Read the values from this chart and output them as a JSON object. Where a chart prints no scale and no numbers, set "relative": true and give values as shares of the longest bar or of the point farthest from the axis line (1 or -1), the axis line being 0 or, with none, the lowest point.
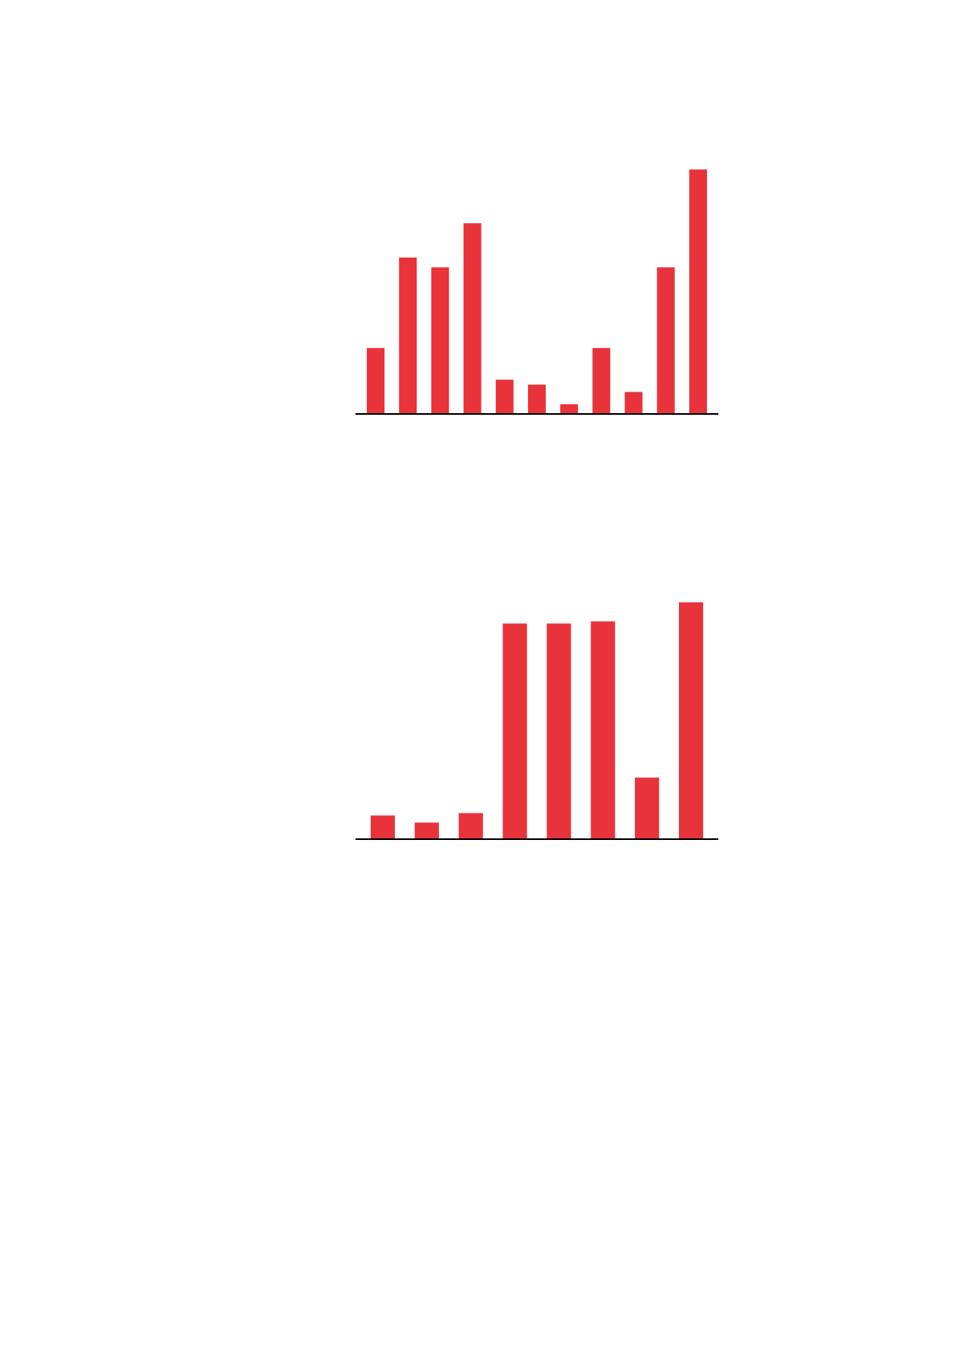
{
  "chart_data": [
    {
      "type": "bar",
      "relative": true,
      "color": "#e8333b",
      "categories": [
        null,
        null,
        null,
        null,
        null,
        null,
        null,
        null,
        null,
        null,
        null
      ],
      "values": [
        0.27,
        0.64,
        0.6,
        0.78,
        0.14,
        0.12,
        0.04,
        0.27,
        0.09,
        0.6,
        1.0
      ]
    },
    {
      "type": "bar",
      "relative": true,
      "color": "#e8333b",
      "categories": [
        null,
        null,
        null,
        null,
        null,
        null,
        null,
        null
      ],
      "values": [
        0.1,
        0.07,
        0.11,
        0.91,
        0.91,
        0.92,
        0.26,
        1.0
      ]
    }
  ]
}
